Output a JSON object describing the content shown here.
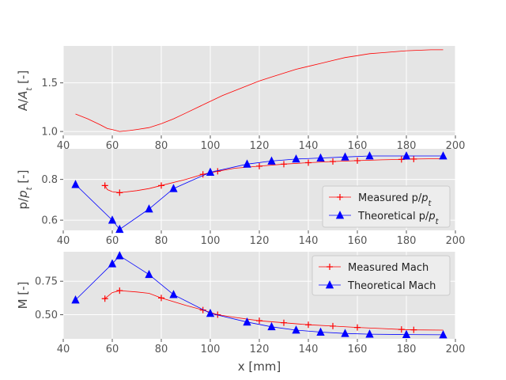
{
  "chart_data": [
    {
      "type": "line",
      "ylabel": "A/A_t [-]",
      "xlabel": "",
      "xlim": [
        40,
        200
      ],
      "ylim": [
        0.96,
        1.88
      ],
      "xticks": [
        40,
        60,
        80,
        100,
        120,
        140,
        160,
        180,
        200
      ],
      "yticks": [
        1.0,
        1.5
      ],
      "ytick_labels": [
        "1.0",
        "1.5"
      ],
      "grid": true,
      "series": [
        {
          "name": "",
          "color": "#ff0000",
          "marker": "none",
          "x": [
            45,
            50,
            55,
            58,
            60,
            63,
            67,
            70,
            75,
            80,
            85,
            90,
            95,
            100,
            105,
            110,
            115,
            120,
            125,
            130,
            135,
            140,
            145,
            150,
            155,
            160,
            165,
            170,
            175,
            180,
            185,
            190,
            195
          ],
          "y": [
            1.18,
            1.13,
            1.07,
            1.03,
            1.02,
            1.0,
            1.01,
            1.02,
            1.04,
            1.08,
            1.13,
            1.19,
            1.25,
            1.31,
            1.37,
            1.42,
            1.47,
            1.52,
            1.56,
            1.6,
            1.64,
            1.67,
            1.7,
            1.73,
            1.76,
            1.78,
            1.8,
            1.81,
            1.82,
            1.83,
            1.835,
            1.84,
            1.84
          ]
        }
      ]
    },
    {
      "type": "line",
      "ylabel": "p/p_t [-]",
      "xlabel": "",
      "xlim": [
        40,
        200
      ],
      "ylim": [
        0.55,
        0.95
      ],
      "xticks": [
        40,
        60,
        80,
        100,
        120,
        140,
        160,
        180,
        200
      ],
      "yticks": [
        0.6,
        0.8
      ],
      "ytick_labels": [
        "0.6",
        "0.8"
      ],
      "grid": true,
      "legend": "center-right",
      "series": [
        {
          "name": "Measured p/p_t",
          "color": "#ff0000",
          "marker": "plus",
          "markers_x": [
            57,
            63,
            80,
            97,
            103,
            120,
            130,
            140,
            150,
            160,
            178,
            183
          ],
          "x": [
            57,
            58,
            60,
            63,
            70,
            75,
            80,
            90,
            97,
            103,
            110,
            120,
            130,
            140,
            150,
            160,
            170,
            178,
            183,
            195
          ],
          "y": [
            0.77,
            0.75,
            0.74,
            0.735,
            0.745,
            0.755,
            0.77,
            0.8,
            0.825,
            0.84,
            0.855,
            0.865,
            0.875,
            0.882,
            0.888,
            0.892,
            0.896,
            0.898,
            0.9,
            0.902
          ]
        },
        {
          "name": "Theoretical p/p_t",
          "color": "#0000ff",
          "marker": "triangle",
          "x": [
            45,
            60,
            63,
            75,
            85,
            100,
            115,
            125,
            135,
            145,
            155,
            165,
            180,
            195
          ],
          "y": [
            0.775,
            0.6,
            0.555,
            0.655,
            0.755,
            0.835,
            0.875,
            0.89,
            0.9,
            0.905,
            0.91,
            0.915,
            0.915,
            0.915
          ]
        }
      ]
    },
    {
      "type": "line",
      "ylabel": "M [-]",
      "xlabel": "x [mm]",
      "xlim": [
        40,
        200
      ],
      "ylim": [
        0.32,
        0.97
      ],
      "xticks": [
        40,
        60,
        80,
        100,
        120,
        140,
        160,
        180,
        200
      ],
      "yticks": [
        0.5,
        0.75
      ],
      "ytick_labels": [
        "0.50",
        "0.75"
      ],
      "grid": true,
      "legend": "top-right",
      "series": [
        {
          "name": "Measured Mach",
          "color": "#ff0000",
          "marker": "plus",
          "markers_x": [
            57,
            63,
            80,
            97,
            103,
            120,
            130,
            140,
            150,
            160,
            178,
            183
          ],
          "x": [
            57,
            60,
            63,
            70,
            75,
            80,
            90,
            97,
            103,
            110,
            120,
            130,
            140,
            150,
            160,
            170,
            178,
            183,
            195
          ],
          "y": [
            0.62,
            0.665,
            0.68,
            0.67,
            0.66,
            0.625,
            0.57,
            0.535,
            0.5,
            0.48,
            0.455,
            0.44,
            0.425,
            0.415,
            0.405,
            0.397,
            0.39,
            0.387,
            0.385
          ]
        },
        {
          "name": "Theoretical Mach",
          "color": "#0000ff",
          "marker": "triangle",
          "x": [
            45,
            60,
            63,
            75,
            85,
            100,
            115,
            125,
            135,
            145,
            155,
            165,
            180,
            195
          ],
          "y": [
            0.61,
            0.88,
            0.94,
            0.8,
            0.65,
            0.51,
            0.445,
            0.41,
            0.385,
            0.37,
            0.36,
            0.355,
            0.352,
            0.35
          ]
        }
      ]
    }
  ]
}
